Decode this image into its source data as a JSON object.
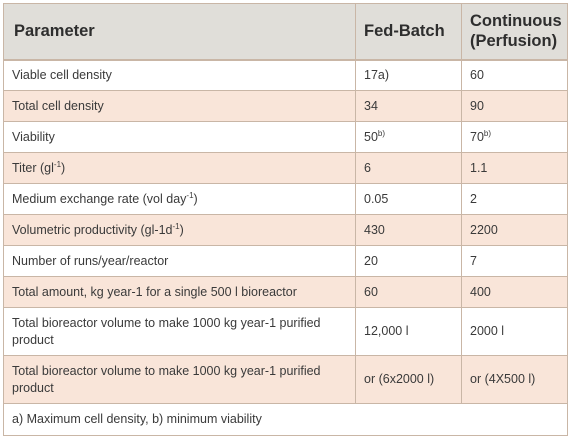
{
  "headers": {
    "parameter": "Parameter",
    "fed_batch": "Fed-Batch",
    "continuous": "Continuous (Perfusion)"
  },
  "rows": [
    {
      "parameter": "Viable cell density",
      "fed_batch": "17a)",
      "continuous": "60"
    },
    {
      "parameter": "Total cell density",
      "fed_batch": "34",
      "continuous": "90"
    },
    {
      "parameter": "Viability",
      "fed_batch": "50",
      "fed_batch_sup": "b)",
      "continuous": "70",
      "continuous_sup": "b)"
    },
    {
      "parameter": "Titer (gl",
      "parameter_sup": "-1",
      "parameter_tail": ")",
      "fed_batch": "6",
      "continuous": "1.1"
    },
    {
      "parameter": "Medium exchange rate (vol day",
      "parameter_sup": "-1",
      "parameter_tail": ")",
      "fed_batch": "0.05",
      "continuous": "2"
    },
    {
      "parameter": "Volumetric productivity (gl-1d",
      "parameter_sup": "-1",
      "parameter_tail": ")",
      "fed_batch": "430",
      "continuous": "2200"
    },
    {
      "parameter": "Number of runs/year/reactor",
      "fed_batch": "20",
      "continuous": "7"
    },
    {
      "parameter": "Total amount, kg year-1 for a single 500 l bioreactor",
      "fed_batch": "60",
      "continuous": "400"
    },
    {
      "parameter": "Total bioreactor volume to make 1000 kg year-1 purified product",
      "fed_batch": "12,000 l",
      "continuous": "2000 l"
    },
    {
      "parameter": "Total bioreactor volume to make 1000 kg year-1 purified product",
      "fed_batch": "or (6x2000 l)",
      "continuous": "or (4X500 l)"
    }
  ],
  "footnote": "a) Maximum cell density, b) minimum viability"
}
